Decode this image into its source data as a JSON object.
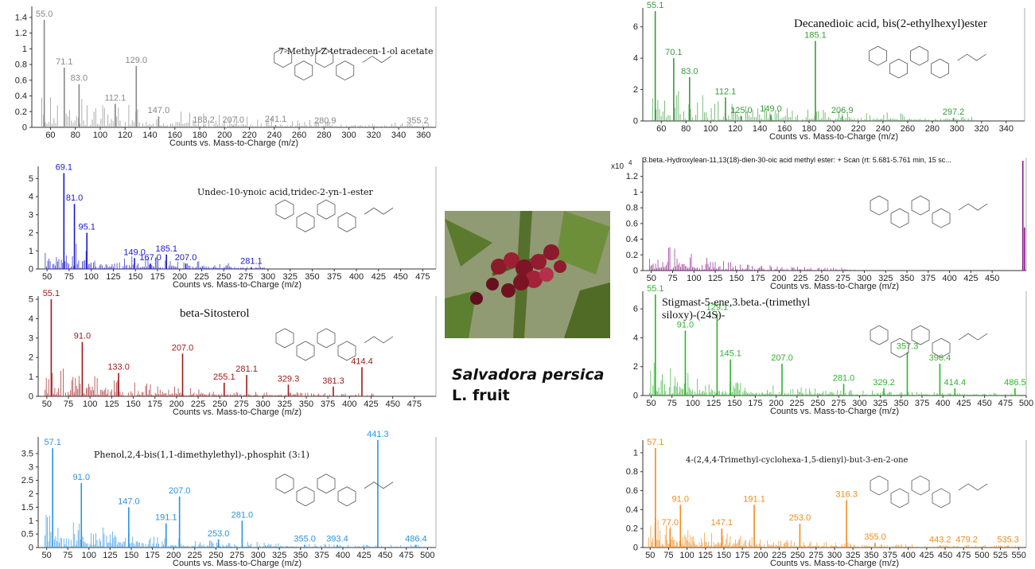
{
  "caption": {
    "line1": "Salvadora persica",
    "line2": "L. fruit"
  },
  "photo": {
    "description_icon": "fruit-photo"
  },
  "chart_data": [
    {
      "type": "bar",
      "title": "7-Methyl-Z-tetradecen-1-ol acetate",
      "xlabel": "Counts vs. Mass-to-Charge (m/z)",
      "ylabel": "",
      "xlim": [
        45,
        370
      ],
      "ylim": [
        0,
        1.5
      ],
      "xticks": [
        60,
        80,
        100,
        120,
        140,
        160,
        180,
        200,
        220,
        240,
        260,
        280,
        300,
        320,
        340,
        360
      ],
      "yticks": [
        0,
        0.2,
        0.4,
        0.6,
        0.8,
        1,
        1.2,
        1.4
      ],
      "color": "#888888",
      "peaks": [
        {
          "x": 55.0,
          "y": 1.37,
          "label": "55.0"
        },
        {
          "x": 71.1,
          "y": 0.76,
          "label": "71.1"
        },
        {
          "x": 83.0,
          "y": 0.55,
          "label": "83.0"
        },
        {
          "x": 112.1,
          "y": 0.3,
          "label": "112.1"
        },
        {
          "x": 129.0,
          "y": 0.78,
          "label": "129.0"
        },
        {
          "x": 147.0,
          "y": 0.14,
          "label": "147.0"
        },
        {
          "x": 183.2,
          "y": 0.02,
          "label": "183.2"
        },
        {
          "x": 207.0,
          "y": 0.02,
          "label": "207.0"
        },
        {
          "x": 241.1,
          "y": 0.03,
          "label": "241.1"
        },
        {
          "x": 280.9,
          "y": 0.01,
          "label": "280.9"
        },
        {
          "x": 355.2,
          "y": 0.01,
          "label": "355.2"
        }
      ]
    },
    {
      "type": "bar",
      "title": "Decanedioic acid, bis(2-ethylhexyl)ester",
      "xlabel": "Counts vs. Mass-to-Charge (m/z)",
      "ylabel": "",
      "xlim": [
        45,
        355
      ],
      "ylim": [
        0,
        7
      ],
      "xticks": [
        60,
        80,
        100,
        120,
        140,
        160,
        180,
        200,
        220,
        240,
        260,
        280,
        300,
        320,
        340
      ],
      "yticks": [
        0,
        2,
        4,
        6
      ],
      "color": "#3a9a3a",
      "peaks": [
        {
          "x": 55.1,
          "y": 7.0,
          "label": "55.1"
        },
        {
          "x": 70.1,
          "y": 4.0,
          "label": "70.1"
        },
        {
          "x": 83.0,
          "y": 2.8,
          "label": "83.0"
        },
        {
          "x": 112.1,
          "y": 1.5,
          "label": "112.1"
        },
        {
          "x": 125.0,
          "y": 0.3,
          "label": "125.0"
        },
        {
          "x": 149.0,
          "y": 0.4,
          "label": "149.0"
        },
        {
          "x": 185.1,
          "y": 5.1,
          "label": "185.1"
        },
        {
          "x": 206.9,
          "y": 0.3,
          "label": "206.9"
        },
        {
          "x": 297.2,
          "y": 0.2,
          "label": "297.2"
        }
      ]
    },
    {
      "type": "bar",
      "title": "Undec-10-ynoic acid,tridec-2-yn-1-ester",
      "xlabel": "Counts vs. Mass-to-Charge (m/z)",
      "ylabel": "",
      "xlim": [
        40,
        490
      ],
      "ylim": [
        0,
        5.5
      ],
      "xticks": [
        50,
        75,
        100,
        125,
        150,
        175,
        200,
        225,
        250,
        275,
        300,
        325,
        350,
        375,
        400,
        425,
        450,
        475
      ],
      "yticks": [
        0,
        1,
        2,
        3,
        4,
        5
      ],
      "color": "#1a1ac8",
      "peaks": [
        {
          "x": 69.1,
          "y": 5.3,
          "label": "69.1"
        },
        {
          "x": 81.0,
          "y": 3.6,
          "label": "81.0"
        },
        {
          "x": 95.1,
          "y": 2.0,
          "label": "95.1"
        },
        {
          "x": 149.0,
          "y": 0.6,
          "label": "149.0"
        },
        {
          "x": 167.0,
          "y": 0.3,
          "label": "167.0"
        },
        {
          "x": 185.1,
          "y": 0.8,
          "label": "185.1"
        },
        {
          "x": 207.0,
          "y": 0.3,
          "label": "207.0"
        },
        {
          "x": 281.1,
          "y": 0.1,
          "label": "281.1"
        }
      ]
    },
    {
      "type": "bar",
      "title": "3.beta.-Hydroxylean-11,13(18)-dien-30-oic acid methyl ester: + Scan (rt: 5.681-5.761 min, 15 sc...",
      "multiplier": "x10",
      "exponent": "4",
      "xlabel": "Counts vs. Mass-to-Charge (m/z)",
      "ylabel": "",
      "xlim": [
        40,
        490
      ],
      "ylim": [
        0,
        1.4
      ],
      "xticks": [
        50,
        75,
        100,
        125,
        150,
        175,
        200,
        225,
        250,
        275,
        300,
        325,
        350,
        375,
        400,
        425,
        450
      ],
      "yticks": [
        0,
        0.2,
        0.4,
        0.6,
        0.8,
        1,
        1.2
      ],
      "color": "#8a1a8a",
      "peaks": [
        {
          "x": 486,
          "y": 1.4,
          "label": ""
        },
        {
          "x": 488,
          "y": 0.55,
          "label": ""
        }
      ]
    },
    {
      "type": "bar",
      "title": "beta-Sitosterol",
      "xlabel": "Counts vs. Mass-to-Charge (m/z)",
      "ylabel": "",
      "xlim": [
        40,
        500
      ],
      "ylim": [
        0,
        5
      ],
      "xticks": [
        50,
        75,
        100,
        125,
        150,
        175,
        200,
        225,
        250,
        275,
        300,
        325,
        350,
        375,
        400,
        425,
        450,
        475
      ],
      "yticks": [
        0,
        1,
        2,
        3,
        4,
        5
      ],
      "color": "#a01a1a",
      "peaks": [
        {
          "x": 55.1,
          "y": 5.0,
          "label": "55.1"
        },
        {
          "x": 91.0,
          "y": 2.8,
          "label": "91.0"
        },
        {
          "x": 133.0,
          "y": 1.2,
          "label": "133.0"
        },
        {
          "x": 207.0,
          "y": 2.2,
          "label": "207.0"
        },
        {
          "x": 255.1,
          "y": 0.7,
          "label": "255.1"
        },
        {
          "x": 281.1,
          "y": 1.1,
          "label": "281.1"
        },
        {
          "x": 329.3,
          "y": 0.6,
          "label": "329.3"
        },
        {
          "x": 381.3,
          "y": 0.5,
          "label": "381.3"
        },
        {
          "x": 414.4,
          "y": 1.5,
          "label": "414.4"
        }
      ]
    },
    {
      "type": "bar",
      "title": "Stigmast-5-ene,3.beta.-(trimethyl siloxy)-(24S)-",
      "title_lines": [
        "Stigmast-5-ene,3.beta.-(trimethyl",
        "siloxy)-(24S)-"
      ],
      "xlabel": "Counts vs. Mass-to-Charge (m/z)",
      "ylabel": "",
      "xlim": [
        40,
        500
      ],
      "ylim": [
        0,
        7
      ],
      "xticks": [
        50,
        75,
        100,
        125,
        150,
        175,
        200,
        225,
        250,
        275,
        300,
        325,
        350,
        375,
        400,
        425,
        450,
        475,
        500
      ],
      "yticks": [
        0,
        2,
        4,
        6
      ],
      "color": "#2db52d",
      "peaks": [
        {
          "x": 55.1,
          "y": 7.0,
          "label": "55.1"
        },
        {
          "x": 91.0,
          "y": 4.5,
          "label": "91.0"
        },
        {
          "x": 129.1,
          "y": 5.7,
          "label": "129.1"
        },
        {
          "x": 145.1,
          "y": 2.5,
          "label": "145.1"
        },
        {
          "x": 207.0,
          "y": 2.2,
          "label": "207.0"
        },
        {
          "x": 281.0,
          "y": 0.8,
          "label": "281.0"
        },
        {
          "x": 329.2,
          "y": 0.5,
          "label": "329.2"
        },
        {
          "x": 357.3,
          "y": 3.0,
          "label": "357.3"
        },
        {
          "x": 396.4,
          "y": 2.2,
          "label": "396.4"
        },
        {
          "x": 414.4,
          "y": 0.5,
          "label": "414.4"
        },
        {
          "x": 486.5,
          "y": 0.5,
          "label": "486.5"
        }
      ]
    },
    {
      "type": "bar",
      "title": "Phenol,2,4-bis(1,1-dimethylethyl)-,phosphit (3:1)",
      "xlabel": "Counts vs. Mass-to-Charge (m/z)",
      "ylabel": "",
      "xlim": [
        40,
        510
      ],
      "ylim": [
        0,
        4
      ],
      "xticks": [
        50,
        75,
        100,
        125,
        150,
        175,
        200,
        225,
        250,
        275,
        300,
        325,
        350,
        375,
        400,
        425,
        450,
        475,
        500
      ],
      "yticks": [
        0,
        0.5,
        1,
        1.5,
        2,
        2.5,
        3,
        3.5
      ],
      "color": "#2a93e0",
      "peaks": [
        {
          "x": 57.1,
          "y": 3.7,
          "label": "57.1"
        },
        {
          "x": 91.0,
          "y": 2.4,
          "label": "91.0"
        },
        {
          "x": 147.0,
          "y": 1.5,
          "label": "147.0"
        },
        {
          "x": 191.1,
          "y": 0.9,
          "label": "191.1"
        },
        {
          "x": 207.0,
          "y": 1.9,
          "label": "207.0"
        },
        {
          "x": 253.0,
          "y": 0.3,
          "label": "253.0"
        },
        {
          "x": 281.0,
          "y": 1.0,
          "label": "281.0"
        },
        {
          "x": 355.0,
          "y": 0.1,
          "label": "355.0"
        },
        {
          "x": 393.4,
          "y": 0.1,
          "label": "393.4"
        },
        {
          "x": 441.3,
          "y": 4.0,
          "label": "441.3"
        },
        {
          "x": 486.4,
          "y": 0.1,
          "label": "486.4"
        }
      ]
    },
    {
      "type": "bar",
      "title": "4-(2,4,4-Trimethyl-cyclohexa-1,5-dienyl)-but-3-en-2-one",
      "xlabel": "Counts vs. Mass-to-Charge (m/z)",
      "ylabel": "",
      "xlim": [
        40,
        560
      ],
      "ylim": [
        0,
        1.1
      ],
      "xticks": [
        50,
        75,
        100,
        125,
        150,
        175,
        200,
        225,
        250,
        275,
        300,
        325,
        350,
        375,
        400,
        425,
        450,
        475,
        500,
        525,
        550
      ],
      "yticks": [
        0,
        0.2,
        0.4,
        0.6,
        0.8,
        1
      ],
      "color": "#f08c1e",
      "peaks": [
        {
          "x": 57.1,
          "y": 1.05,
          "label": "57.1"
        },
        {
          "x": 77.0,
          "y": 0.2,
          "label": "77.0"
        },
        {
          "x": 91.0,
          "y": 0.45,
          "label": "91.0"
        },
        {
          "x": 147.1,
          "y": 0.2,
          "label": "147.1"
        },
        {
          "x": 191.1,
          "y": 0.45,
          "label": "191.1"
        },
        {
          "x": 253.0,
          "y": 0.25,
          "label": "253.0"
        },
        {
          "x": 316.3,
          "y": 0.5,
          "label": "316.3"
        },
        {
          "x": 355.0,
          "y": 0.05,
          "label": "355.0"
        },
        {
          "x": 443.2,
          "y": 0.02,
          "label": "443.2"
        },
        {
          "x": 479.2,
          "y": 0.02,
          "label": "479.2"
        },
        {
          "x": 535.3,
          "y": 0.02,
          "label": "535.3"
        }
      ]
    }
  ]
}
